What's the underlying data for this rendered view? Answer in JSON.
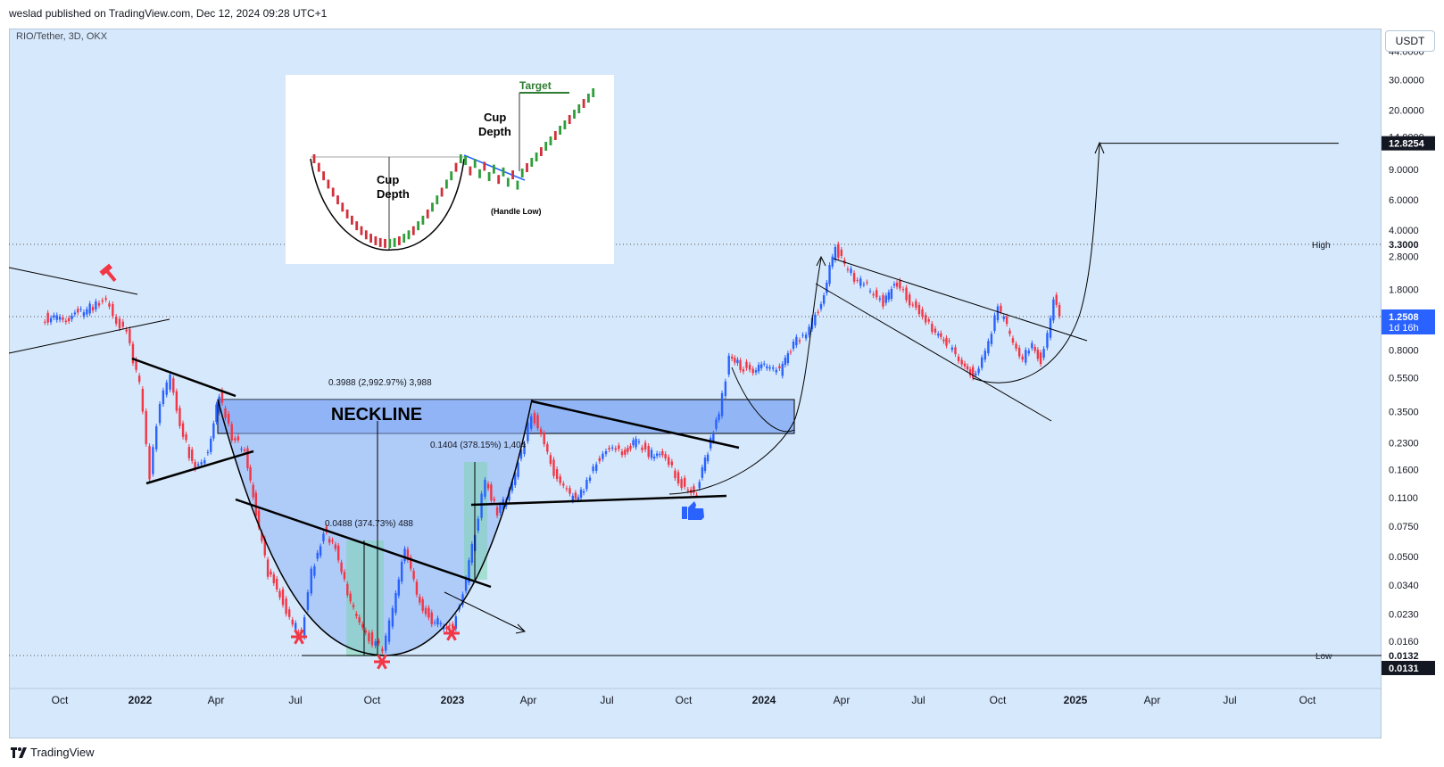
{
  "header": {
    "published_text": "weslad published on TradingView.com, Dec 12, 2024 09:28 UTC+1",
    "symbol_text": "RIO/Tether, 3D, OKX"
  },
  "footer": {
    "logo_text": "TradingView"
  },
  "axis": {
    "currency_button": "USDT"
  },
  "colors": {
    "background": "#d6e8fb",
    "bull": "#2962ff",
    "bear": "#f23645",
    "neckline_zone": "#5b8cf0",
    "cup_fill": "#8fb2f5",
    "measure_fill": "#7ed6b0",
    "trendline": "#000000"
  },
  "chart_data": {
    "type": "candlestick",
    "title": "RIO/Tether, 3D, OKX",
    "y_scale": "log",
    "y_ticks": [
      "44.0000",
      "30.0000",
      "20.0000",
      "14.0000",
      "9.0000",
      "6.0000",
      "4.0000",
      "2.8000",
      "1.8000",
      "1.2508",
      "0.8000",
      "0.5500",
      "0.3500",
      "0.2300",
      "0.1600",
      "0.1100",
      "0.0750",
      "0.0500",
      "0.0340",
      "0.0230",
      "0.0160",
      "0.0132",
      "0.0131"
    ],
    "x_ticks": [
      "Oct",
      "2022",
      "Apr",
      "Jul",
      "Oct",
      "2023",
      "Apr",
      "Jul",
      "Oct",
      "2024",
      "Apr",
      "Jul",
      "Oct",
      "2025",
      "Apr",
      "Jul",
      "Oct"
    ],
    "labels": {
      "high_label": "High",
      "high_value": "3.3000",
      "low_label": "Low",
      "low_value": "0.0132",
      "last_low_value": "0.0131",
      "current_price": "1.2508",
      "countdown": "1d 16h",
      "target_price": "12.8254"
    },
    "annotations": {
      "neckline": "NECKLINE",
      "measure_big": "0.3988 (2,992.97%) 3,988",
      "measure_mid": "0.1404 (378.15%) 1,404",
      "measure_small": "0.0488 (374.73%) 488"
    },
    "inset": {
      "cup_depth_left": "Cup Depth",
      "cup_depth_right": "Cup Depth",
      "target": "Target",
      "handle_low": "(Handle Low)"
    },
    "series": [
      {
        "name": "RIO/Tether",
        "points": [
          [
            "2021-09-10",
            1.25
          ],
          [
            "2021-10-01",
            1.2
          ],
          [
            "2021-10-22",
            1.32
          ],
          [
            "2021-11-12",
            1.45
          ],
          [
            "2021-11-24",
            1.6
          ],
          [
            "2021-12-06",
            1.15
          ],
          [
            "2021-12-18",
            1.0
          ],
          [
            "2022-01-02",
            0.5
          ],
          [
            "2022-01-14",
            0.15
          ],
          [
            "2022-01-26",
            0.4
          ],
          [
            "2022-02-07",
            0.55
          ],
          [
            "2022-02-22",
            0.25
          ],
          [
            "2022-03-08",
            0.16
          ],
          [
            "2022-03-23",
            0.2
          ],
          [
            "2022-04-05",
            0.45
          ],
          [
            "2022-04-20",
            0.25
          ],
          [
            "2022-05-05",
            0.2
          ],
          [
            "2022-05-18",
            0.09
          ],
          [
            "2022-06-01",
            0.04
          ],
          [
            "2022-06-15",
            0.03
          ],
          [
            "2022-06-30",
            0.02
          ],
          [
            "2022-07-10",
            0.018
          ],
          [
            "2022-07-22",
            0.04
          ],
          [
            "2022-08-05",
            0.07
          ],
          [
            "2022-08-19",
            0.055
          ],
          [
            "2022-09-02",
            0.03
          ],
          [
            "2022-09-16",
            0.02
          ],
          [
            "2022-10-01",
            0.016
          ],
          [
            "2022-10-13",
            0.014
          ],
          [
            "2022-10-25",
            0.025
          ],
          [
            "2022-11-08",
            0.055
          ],
          [
            "2022-11-22",
            0.03
          ],
          [
            "2022-12-06",
            0.022
          ],
          [
            "2022-12-20",
            0.02
          ],
          [
            "2023-01-03",
            0.02
          ],
          [
            "2023-01-15",
            0.03
          ],
          [
            "2023-01-29",
            0.07
          ],
          [
            "2023-02-10",
            0.14
          ],
          [
            "2023-02-24",
            0.09
          ],
          [
            "2023-03-10",
            0.12
          ],
          [
            "2023-03-24",
            0.2
          ],
          [
            "2023-04-05",
            0.35
          ],
          [
            "2023-04-20",
            0.22
          ],
          [
            "2023-05-05",
            0.14
          ],
          [
            "2023-05-20",
            0.11
          ],
          [
            "2023-06-05",
            0.12
          ],
          [
            "2023-06-20",
            0.18
          ],
          [
            "2023-07-05",
            0.22
          ],
          [
            "2023-07-20",
            0.2
          ],
          [
            "2023-08-05",
            0.24
          ],
          [
            "2023-08-20",
            0.2
          ],
          [
            "2023-09-05",
            0.19
          ],
          [
            "2023-09-20",
            0.15
          ],
          [
            "2023-10-05",
            0.12
          ],
          [
            "2023-10-15",
            0.12
          ],
          [
            "2023-10-28",
            0.2
          ],
          [
            "2023-11-10",
            0.35
          ],
          [
            "2023-11-22",
            0.7
          ],
          [
            "2023-12-05",
            0.65
          ],
          [
            "2023-12-20",
            0.6
          ],
          [
            "2024-01-05",
            0.65
          ],
          [
            "2024-01-20",
            0.6
          ],
          [
            "2024-02-05",
            0.9
          ],
          [
            "2024-02-20",
            1.0
          ],
          [
            "2024-03-05",
            1.4
          ],
          [
            "2024-03-15",
            2.0
          ],
          [
            "2024-03-25",
            3.2
          ],
          [
            "2024-04-05",
            2.5
          ],
          [
            "2024-04-20",
            2.0
          ],
          [
            "2024-05-05",
            1.8
          ],
          [
            "2024-05-20",
            1.5
          ],
          [
            "2024-06-05",
            2.0
          ],
          [
            "2024-06-20",
            1.5
          ],
          [
            "2024-07-05",
            1.3
          ],
          [
            "2024-07-20",
            1.0
          ],
          [
            "2024-08-05",
            0.85
          ],
          [
            "2024-08-20",
            0.7
          ],
          [
            "2024-09-05",
            0.55
          ],
          [
            "2024-09-20",
            0.9
          ],
          [
            "2024-10-01",
            1.4
          ],
          [
            "2024-10-15",
            1.0
          ],
          [
            "2024-10-30",
            0.7
          ],
          [
            "2024-11-10",
            0.85
          ],
          [
            "2024-11-20",
            0.7
          ],
          [
            "2024-11-28",
            1.0
          ],
          [
            "2024-12-05",
            1.6
          ],
          [
            "2024-12-12",
            1.25
          ]
        ]
      }
    ],
    "projection_target": 12.8254
  }
}
